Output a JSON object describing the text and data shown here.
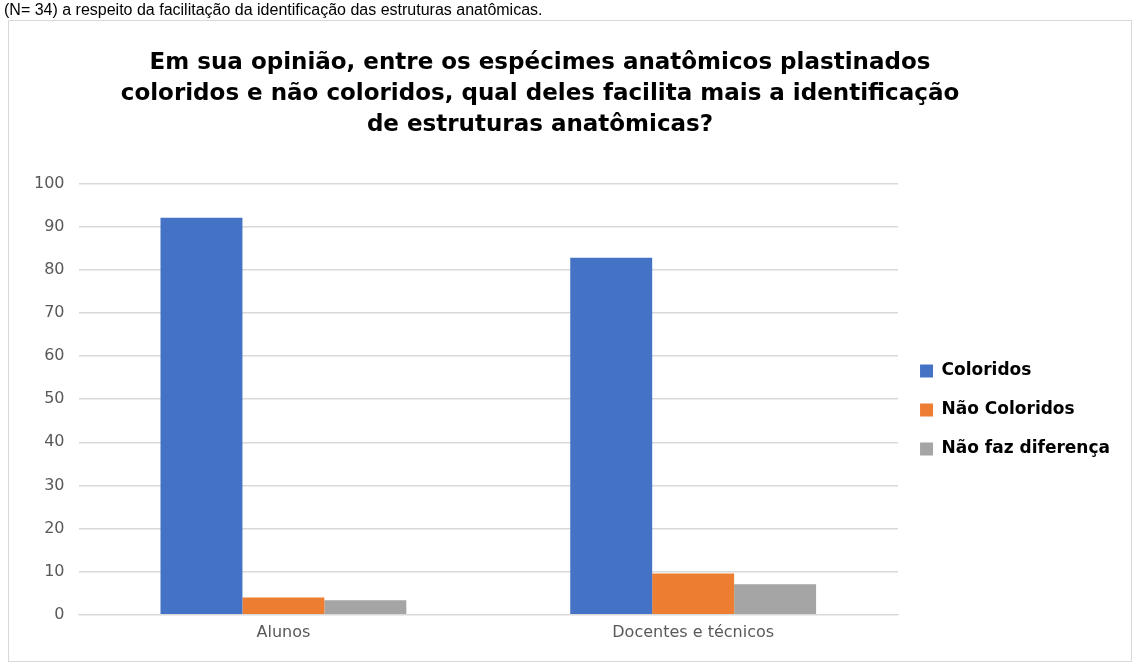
{
  "chart_data": {
    "type": "bar",
    "title": "Em sua opinião, entre os espécimes anatômicos plastinados coloridos e não coloridos, qual deles facilita mais a identificação de estruturas anatômicas?",
    "annotations": [
      "(N= 34) a respeito da facilitação da identificação das estruturas anatômicas."
    ],
    "categories": [
      "Alunos",
      "Docentes e técnicos"
    ],
    "series": [
      {
        "name": "Coloridos",
        "color": "#4472c4",
        "values": [
          92.1,
          82.8
        ]
      },
      {
        "name": "Não Coloridos",
        "color": "#ed7d31",
        "values": [
          4.0,
          9.6
        ]
      },
      {
        "name": "Não faz diferença",
        "color": "#a5a5a5",
        "values": [
          3.4,
          7.1
        ]
      }
    ],
    "ylim": [
      0,
      100
    ],
    "yticks": [
      0,
      10,
      20,
      30,
      40,
      50,
      60,
      70,
      80,
      90,
      100
    ],
    "grid": "y",
    "legend": "right"
  }
}
